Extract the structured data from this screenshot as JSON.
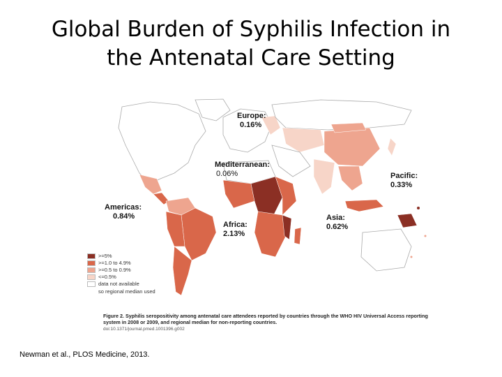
{
  "slide": {
    "title_line1": "Global Burden of Syphilis Infection in",
    "title_line2": "the Antenatal Care Setting",
    "citation": "Newman et al., PLOS Medicine, 2013."
  },
  "map": {
    "regions": [
      {
        "id": "europe",
        "name": "Europe:",
        "value": "0.16%"
      },
      {
        "id": "mediterranean",
        "name": "Mediterranean:",
        "value": "0.06%"
      },
      {
        "id": "pacific",
        "name": "Pacific:",
        "value": "0.33%"
      },
      {
        "id": "americas",
        "name": "Americas:",
        "value": "0.84%"
      },
      {
        "id": "africa",
        "name": "Africa:",
        "value": "2.13%"
      },
      {
        "id": "asia",
        "name": "Asia:",
        "value": "0.62%"
      }
    ],
    "legend": [
      {
        "label": ">=5%",
        "color": "#8b2f24"
      },
      {
        "label": ">=1.0 to 4.9%",
        "color": "#d9674a"
      },
      {
        "label": ">=0.5 to 0.9%",
        "color": "#eea58f"
      },
      {
        "label": "<=0.5%",
        "color": "#f7d5c8"
      },
      {
        "label": "data not available",
        "color": "#ffffff"
      }
    ],
    "legend_note": "so regional median used",
    "caption_bold": "Figure 2. Syphilis seropositivity among antenatal care attendees reported by countries through the WHO HIV Universal Access reporting system in 2008 or 2009, and regional median for non-reporting countries.",
    "caption_doi": "doi:10.1371/journal.pmed.1001396.g002"
  }
}
